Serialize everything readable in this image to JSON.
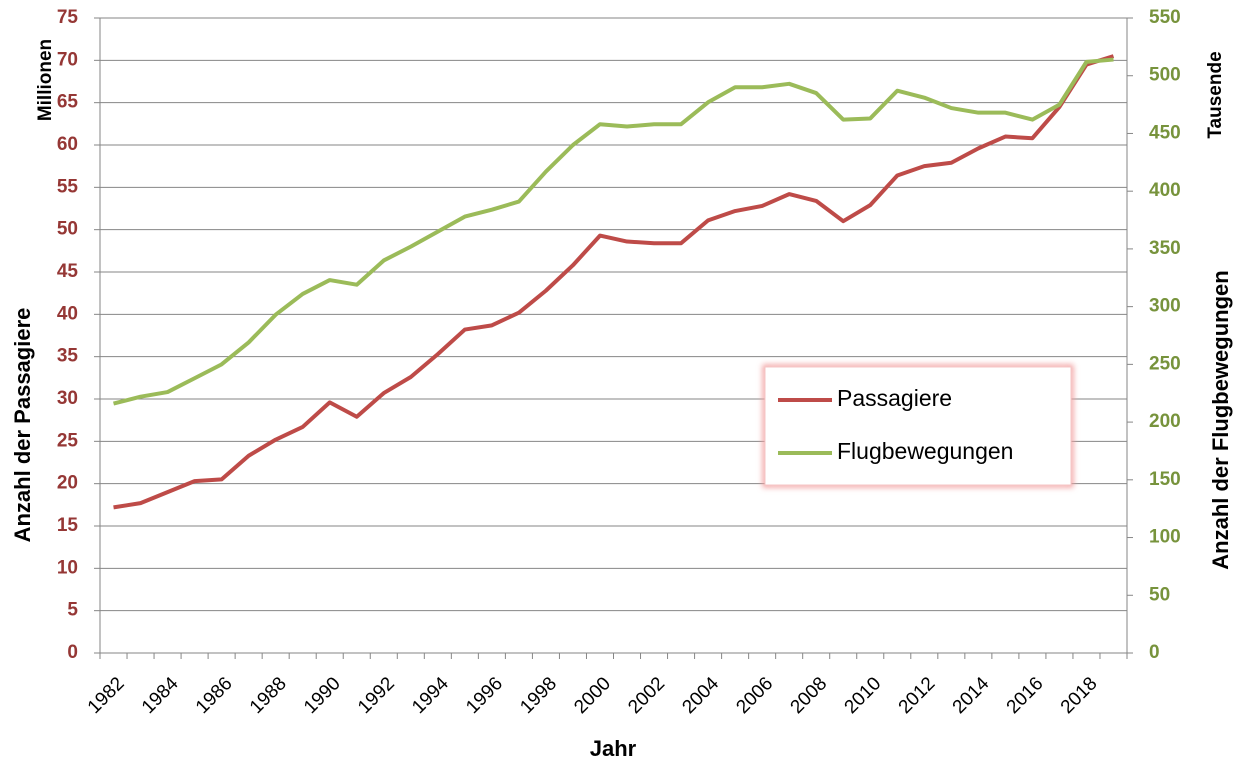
{
  "chart_data": {
    "type": "line",
    "y_unit": "Millionen",
    "y2_unit": "Tausende",
    "y_label": "Anzahl der Passagiere",
    "y2_label": "Anzahl der Flugbewegungen",
    "x_label": "Jahr",
    "categories": [
      "1982",
      null,
      "1984",
      null,
      "1986",
      null,
      "1988",
      null,
      "1990",
      null,
      "1992",
      null,
      "1994",
      null,
      "1996",
      null,
      "1998",
      null,
      "2000",
      null,
      "2002",
      null,
      "2004",
      null,
      "2006",
      null,
      "2008",
      null,
      "2010",
      null,
      "2012",
      null,
      "2014",
      null,
      "2016",
      null,
      "2018",
      null
    ],
    "series": [
      {
        "name": "Passagiere",
        "color": "#be4b48",
        "values": [
          17.2,
          17.7,
          19.0,
          20.3,
          20.5,
          23.3,
          25.2,
          26.7,
          29.6,
          27.9,
          30.7,
          32.6,
          35.3,
          38.2,
          38.7,
          40.2,
          42.8,
          45.8,
          49.3,
          48.6,
          48.4,
          48.4,
          51.1,
          52.2,
          52.8,
          54.2,
          53.4,
          51.0,
          52.9,
          56.4,
          57.5,
          57.9,
          59.6,
          61.0,
          60.8,
          64.5,
          69.5,
          70.5
        ]
      },
      {
        "name": "Flugbewegungen",
        "color": "#9bbb59",
        "axis": "y2",
        "values": [
          216,
          222,
          226,
          238,
          250,
          269,
          293,
          311,
          323,
          319,
          340,
          352,
          365,
          378,
          384,
          391,
          417,
          440,
          458,
          456,
          458,
          458,
          477,
          490,
          490,
          493,
          485,
          462,
          463,
          487,
          481,
          472,
          468,
          468,
          462,
          475,
          512,
          514
        ]
      }
    ],
    "ylim": [
      0,
      75
    ],
    "yticks": [
      0,
      5,
      10,
      15,
      20,
      25,
      30,
      35,
      40,
      45,
      50,
      55,
      60,
      65,
      70,
      75
    ],
    "ytick_color": "#953735",
    "y2lim": [
      0,
      550
    ],
    "y2ticks": [
      0,
      50,
      100,
      150,
      200,
      250,
      300,
      350,
      400,
      450,
      500,
      550
    ],
    "y2tick_color": "#77933c",
    "grid": true,
    "legend": "right"
  }
}
